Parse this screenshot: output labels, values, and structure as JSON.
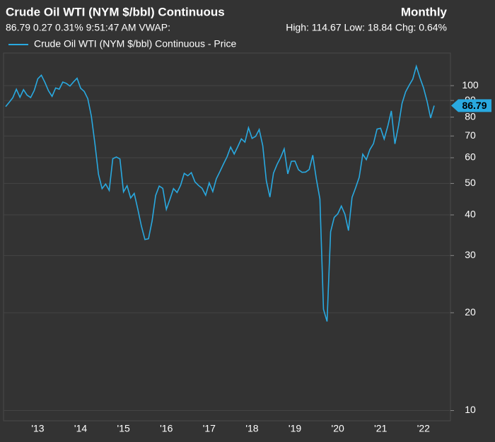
{
  "chart_data": {
    "type": "line",
    "title": "Crude Oil WTI (NYM $/bbl) Continuous",
    "period": "Monthly",
    "quote_line": "86.79 0.27 0.31% 9:51:47 AM VWAP:",
    "range_line": "High: 114.67 Low: 18.84 Chg: 0.64%",
    "categories": [
      null,
      null,
      null,
      null,
      null,
      null,
      null,
      null,
      null,
      "'13",
      null,
      null,
      null,
      null,
      null,
      null,
      null,
      null,
      null,
      null,
      null,
      "'14",
      null,
      null,
      null,
      null,
      null,
      null,
      null,
      null,
      null,
      null,
      null,
      "'15",
      null,
      null,
      null,
      null,
      null,
      null,
      null,
      null,
      null,
      null,
      null,
      "'16",
      null,
      null,
      null,
      null,
      null,
      null,
      null,
      null,
      null,
      null,
      null,
      "'17",
      null,
      null,
      null,
      null,
      null,
      null,
      null,
      null,
      null,
      null,
      null,
      "'18",
      null,
      null,
      null,
      null,
      null,
      null,
      null,
      null,
      null,
      null,
      null,
      "'19",
      null,
      null,
      null,
      null,
      null,
      null,
      null,
      null,
      null,
      null,
      null,
      "'20",
      null,
      null,
      null,
      null,
      null,
      null,
      null,
      null,
      null,
      null,
      null,
      "'21",
      null,
      null,
      null,
      null,
      null,
      null,
      null,
      null,
      null,
      null,
      null,
      "'22",
      null,
      null,
      null
    ],
    "series": [
      {
        "name": "Crude Oil WTI (NYM $/bbl) Continuous - Price",
        "color": "#29a9e0",
        "values": [
          86.2,
          88.9,
          91.8,
          97.5,
          92.1,
          97.2,
          93.5,
          91.9,
          96.6,
          105.0,
          107.7,
          102.3,
          96.4,
          92.7,
          98.4,
          97.5,
          102.6,
          101.6,
          99.7,
          102.7,
          105.4,
          98.2,
          96.0,
          91.2,
          80.5,
          66.2,
          53.3,
          48.2,
          49.8,
          47.6,
          59.6,
          60.3,
          59.5,
          47.1,
          49.2,
          45.1,
          46.6,
          41.7,
          37.0,
          33.6,
          33.8,
          38.3,
          45.9,
          49.1,
          48.3,
          41.6,
          44.7,
          48.2,
          46.9,
          49.4,
          53.7,
          52.8,
          54.0,
          50.6,
          49.3,
          48.3,
          46.0,
          50.2,
          47.2,
          51.7,
          54.4,
          57.4,
          60.4,
          64.7,
          61.6,
          64.9,
          68.6,
          67.0,
          74.2,
          68.8,
          69.8,
          73.3,
          65.3,
          50.9,
          45.4,
          53.8,
          57.2,
          60.1,
          63.9,
          53.5,
          58.5,
          58.6,
          55.1,
          54.1,
          54.2,
          55.2,
          61.1,
          51.6,
          44.8,
          20.5,
          18.8,
          35.5,
          39.3,
          40.3,
          42.6,
          40.2,
          35.8,
          45.3,
          48.5,
          52.2,
          61.5,
          59.2,
          63.6,
          66.3,
          73.5,
          73.95,
          68.5,
          75.0,
          83.6,
          66.2,
          75.2,
          88.2,
          95.7,
          100.3,
          104.7,
          114.7,
          105.8,
          98.6,
          89.6,
          79.5,
          86.79
        ]
      }
    ],
    "yscale": "log",
    "ylim": [
      9.3,
      126
    ],
    "yticks": [
      10,
      20,
      30,
      40,
      50,
      60,
      70,
      80,
      90,
      100
    ],
    "grid": true,
    "legend": "top-left"
  }
}
